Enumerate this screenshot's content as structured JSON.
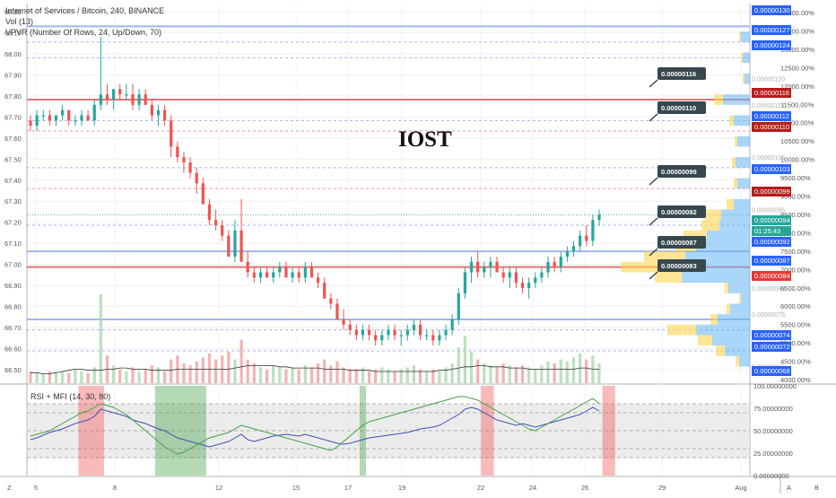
{
  "header": {
    "symbol_line": "Internet of Services / Bitcoin, 240, BINANCE",
    "volume_line": "Vol (13)",
    "vpvr_line": "VPVR (Number Of Rows, 24, Up/Down, 70)"
  },
  "overlay_title": "IOST",
  "rsi_label": "RSI + MFI (14, 30, 80)",
  "colors": {
    "up": "#26a69a",
    "down": "#ef5350",
    "blue_level": "#9fb6e6",
    "red_level": "#e57373",
    "price_tag_blue": "#2962ff",
    "price_tag_red": "#b71c1c",
    "price_tag_green": "#26a69a",
    "callout": "#37474f",
    "vpvr_up": "#64b5f6",
    "vpvr_down": "#ffd54f",
    "rsi_line": "#3f51b5",
    "mfi_line": "#43a047"
  },
  "chart_data": {
    "type": "candlestick",
    "left_axis_ticks": [
      "68.20",
      "68.10",
      "68.00",
      "67.90",
      "67.80",
      "67.70",
      "67.60",
      "67.50",
      "67.40",
      "67.30",
      "67.20",
      "67.10",
      "67.00",
      "66.90",
      "66.80",
      "66.70",
      "66.60",
      "66.50"
    ],
    "right_axis_ticks": [
      "14000.00%",
      "13500.00%",
      "13000.00%",
      "12500.00%",
      "12000.00%",
      "11500.00%",
      "11000.00%",
      "10500.00%",
      "10000.00%",
      "9500.00%",
      "9000.00%",
      "8500.00%",
      "8000.00%",
      "7500.00%",
      "7000.00%",
      "6500.00%",
      "6000.00%",
      "5500.00%",
      "5000.00%",
      "4500.00%",
      "4000.00%"
    ],
    "right_scale_ticks": [
      "0.00000120",
      "0.00000115",
      "0.00000105",
      "0.00000095",
      "0.00000090",
      "0.00000085",
      "0.00000080",
      "0.00000075",
      "0.00000070",
      "0.00000065"
    ],
    "rsi_axis_ticks": [
      "100.00000000",
      "75.00000000",
      "50.00000000",
      "25.00000000",
      "0.00000000"
    ],
    "x_ticks": [
      "5",
      "8",
      "12",
      "15",
      "17",
      "19",
      "22",
      "24",
      "26",
      "29",
      "Aug"
    ],
    "price_tags": [
      {
        "label": "0.00000130",
        "kind": "blue"
      },
      {
        "label": "0.00000127",
        "kind": "blue"
      },
      {
        "label": "0.00000124",
        "kind": "blue"
      },
      {
        "label": "0.00000116",
        "kind": "red"
      },
      {
        "label": "0.00000112",
        "kind": "blue"
      },
      {
        "label": "0.00000110",
        "kind": "red"
      },
      {
        "label": "0.00000103",
        "kind": "blue"
      },
      {
        "label": "0.00000099",
        "kind": "red"
      },
      {
        "label": "0.00000094",
        "kind": "green"
      },
      {
        "label": "01:25:43",
        "kind": "green"
      },
      {
        "label": "0.00000092",
        "kind": "blue"
      },
      {
        "label": "0.00000087",
        "kind": "blue"
      },
      {
        "label": "0.00000084",
        "kind": "brightred"
      },
      {
        "label": "0.00000074",
        "kind": "blue"
      },
      {
        "label": "0.00000072",
        "kind": "blue"
      },
      {
        "label": "0.00000068",
        "kind": "blue"
      }
    ],
    "callouts": [
      "0.00000116",
      "0.00000110",
      "0.00000099",
      "0.00000092",
      "0.00000087",
      "0.00000083"
    ],
    "candles_btc_e8": [
      [
        112,
        113,
        110,
        111
      ],
      [
        111,
        114,
        110,
        113
      ],
      [
        113,
        114,
        112,
        113
      ],
      [
        113,
        114,
        111,
        112
      ],
      [
        112,
        113,
        111,
        113
      ],
      [
        113,
        115,
        112,
        114
      ],
      [
        114,
        114,
        111,
        112
      ],
      [
        112,
        113,
        111,
        112
      ],
      [
        112,
        114,
        111,
        113
      ],
      [
        113,
        114,
        112,
        112
      ],
      [
        112,
        116,
        111,
        115
      ],
      [
        115,
        128,
        114,
        117
      ],
      [
        117,
        119,
        115,
        116
      ],
      [
        116,
        118,
        114,
        118
      ],
      [
        118,
        119,
        116,
        117
      ],
      [
        117,
        119,
        116,
        117
      ],
      [
        117,
        119,
        114,
        115
      ],
      [
        115,
        118,
        114,
        117
      ],
      [
        117,
        118,
        115,
        115
      ],
      [
        115,
        116,
        112,
        113
      ],
      [
        113,
        115,
        111,
        114
      ],
      [
        114,
        115,
        111,
        112
      ],
      [
        112,
        113,
        105,
        107
      ],
      [
        107,
        108,
        104,
        105
      ],
      [
        105,
        106,
        102,
        104
      ],
      [
        104,
        105,
        101,
        102
      ],
      [
        102,
        103,
        98,
        100
      ],
      [
        100,
        101,
        96,
        96
      ],
      [
        96,
        97,
        92,
        93
      ],
      [
        93,
        95,
        91,
        92
      ],
      [
        92,
        93,
        89,
        90
      ],
      [
        90,
        91,
        86,
        86
      ],
      [
        86,
        93,
        85,
        91
      ],
      [
        91,
        97,
        85,
        85
      ],
      [
        85,
        87,
        82,
        83
      ],
      [
        83,
        84,
        81,
        82
      ],
      [
        82,
        84,
        81,
        83
      ],
      [
        83,
        84,
        82,
        82
      ],
      [
        82,
        84,
        81,
        83
      ],
      [
        83,
        85,
        82,
        84
      ],
      [
        84,
        85,
        82,
        82
      ],
      [
        82,
        84,
        81,
        83
      ],
      [
        83,
        84,
        81,
        82
      ],
      [
        82,
        85,
        81,
        84
      ],
      [
        84,
        85,
        82,
        82
      ],
      [
        82,
        83,
        80,
        81
      ],
      [
        81,
        82,
        78,
        78
      ],
      [
        78,
        79,
        76,
        77
      ],
      [
        77,
        78,
        74,
        74
      ],
      [
        74,
        76,
        72,
        73
      ],
      [
        73,
        74,
        71,
        72
      ],
      [
        72,
        73,
        70,
        71
      ],
      [
        71,
        73,
        70,
        72
      ],
      [
        72,
        73,
        70,
        71
      ],
      [
        71,
        72,
        69,
        70
      ],
      [
        70,
        72,
        69,
        71
      ],
      [
        71,
        73,
        70,
        72
      ],
      [
        72,
        73,
        70,
        71
      ],
      [
        71,
        72,
        69,
        71
      ],
      [
        71,
        73,
        70,
        72
      ],
      [
        72,
        74,
        71,
        73
      ],
      [
        73,
        74,
        70,
        71
      ],
      [
        71,
        72,
        70,
        71
      ],
      [
        71,
        72,
        69,
        70
      ],
      [
        70,
        72,
        69,
        71
      ],
      [
        71,
        73,
        70,
        72
      ],
      [
        72,
        75,
        71,
        74
      ],
      [
        74,
        80,
        73,
        79
      ],
      [
        79,
        84,
        78,
        83
      ],
      [
        83,
        86,
        81,
        85
      ],
      [
        85,
        87,
        82,
        83
      ],
      [
        83,
        85,
        82,
        84
      ],
      [
        84,
        86,
        82,
        85
      ],
      [
        85,
        86,
        83,
        83
      ],
      [
        83,
        84,
        81,
        82
      ],
      [
        82,
        84,
        80,
        83
      ],
      [
        83,
        84,
        80,
        81
      ],
      [
        81,
        82,
        79,
        80
      ],
      [
        80,
        82,
        78,
        81
      ],
      [
        81,
        83,
        80,
        82
      ],
      [
        82,
        84,
        81,
        83
      ],
      [
        83,
        86,
        82,
        85
      ],
      [
        85,
        86,
        83,
        84
      ],
      [
        84,
        87,
        83,
        86
      ],
      [
        86,
        88,
        85,
        87
      ],
      [
        87,
        89,
        86,
        88
      ],
      [
        88,
        91,
        87,
        90
      ],
      [
        90,
        92,
        88,
        89
      ],
      [
        89,
        94,
        88,
        93
      ],
      [
        93,
        95,
        92,
        94
      ]
    ],
    "volume_rel": [
      6,
      5,
      5,
      6,
      5,
      6,
      5,
      7,
      6,
      5,
      8,
      45,
      14,
      9,
      7,
      6,
      8,
      6,
      7,
      9,
      8,
      6,
      12,
      14,
      10,
      9,
      11,
      13,
      15,
      12,
      14,
      16,
      12,
      22,
      12,
      10,
      8,
      7,
      9,
      8,
      7,
      8,
      7,
      9,
      8,
      10,
      12,
      9,
      11,
      8,
      7,
      7,
      8,
      6,
      7,
      8,
      7,
      6,
      7,
      8,
      9,
      7,
      6,
      7,
      6,
      8,
      10,
      18,
      24,
      16,
      12,
      10,
      9,
      8,
      10,
      9,
      8,
      9,
      8,
      7,
      9,
      11,
      10,
      12,
      11,
      13,
      15,
      12,
      14,
      10
    ],
    "vol_ma": [
      9,
      9,
      8,
      8,
      9,
      10,
      11,
      12,
      12,
      11,
      11,
      11,
      12,
      12,
      13,
      13,
      12,
      12,
      12,
      11,
      11,
      11,
      11,
      12,
      12,
      12,
      12,
      12,
      12,
      12,
      12,
      12,
      13,
      14,
      15,
      15,
      15,
      15,
      15,
      14,
      14,
      13,
      13,
      13,
      13,
      13,
      12,
      12,
      12,
      12,
      11,
      11,
      11,
      11,
      10,
      10,
      10,
      10,
      10,
      10,
      10,
      10,
      10,
      10,
      11,
      11,
      12,
      13,
      14,
      14,
      15,
      15,
      14,
      14,
      14,
      13,
      13,
      13,
      12,
      12,
      12,
      12,
      12,
      12,
      12,
      12,
      13,
      13,
      12,
      12
    ],
    "rsi": [
      40,
      42,
      45,
      48,
      50,
      52,
      55,
      58,
      60,
      62,
      66,
      74,
      72,
      70,
      68,
      66,
      62,
      60,
      58,
      55,
      52,
      50,
      46,
      42,
      40,
      38,
      36,
      34,
      32,
      34,
      36,
      38,
      42,
      46,
      40,
      38,
      40,
      42,
      44,
      45,
      46,
      45,
      44,
      46,
      44,
      42,
      40,
      38,
      36,
      35,
      36,
      38,
      40,
      42,
      43,
      44,
      45,
      46,
      47,
      48,
      50,
      52,
      53,
      54,
      56,
      60,
      64,
      68,
      74,
      76,
      74,
      70,
      66,
      62,
      60,
      58,
      56,
      58,
      56,
      54,
      56,
      58,
      60,
      62,
      64,
      66,
      68,
      72,
      76,
      72
    ],
    "mfi": [
      44,
      46,
      48,
      50,
      54,
      58,
      62,
      66,
      70,
      72,
      76,
      80,
      78,
      76,
      72,
      68,
      62,
      56,
      50,
      44,
      38,
      32,
      28,
      24,
      26,
      30,
      34,
      38,
      42,
      44,
      46,
      48,
      52,
      56,
      54,
      52,
      50,
      48,
      46,
      44,
      42,
      40,
      38,
      36,
      34,
      32,
      30,
      28,
      32,
      38,
      44,
      50,
      56,
      60,
      62,
      64,
      66,
      68,
      70,
      72,
      74,
      76,
      78,
      80,
      82,
      84,
      86,
      88,
      88,
      86,
      84,
      80,
      76,
      72,
      68,
      64,
      60,
      56,
      52,
      50,
      54,
      58,
      62,
      66,
      70,
      74,
      78,
      82,
      86,
      80
    ],
    "rsi_shaded_bands": [
      "8-11",
      "20",
      "21",
      "22-27",
      "52",
      "71-72",
      "90-91"
    ],
    "rsi_levels": [
      80,
      70,
      50,
      30,
      20
    ],
    "horizontal_levels_btc_e8": {
      "blue": [
        130,
        127,
        124,
        112,
        103,
        92,
        87,
        74,
        72,
        68
      ],
      "red": [
        116,
        110,
        99,
        84
      ]
    },
    "vpvr_rows_btc_e8": [
      {
        "price": 128,
        "up": 10,
        "down": 2
      },
      {
        "price": 124,
        "up": 8,
        "down": 2
      },
      {
        "price": 120,
        "up": 6,
        "down": 2
      },
      {
        "price": 116,
        "up": 30,
        "down": 10
      },
      {
        "price": 112,
        "up": 18,
        "down": 5
      },
      {
        "price": 108,
        "up": 14,
        "down": 3
      },
      {
        "price": 104,
        "up": 16,
        "down": 4
      },
      {
        "price": 100,
        "up": 14,
        "down": 4
      },
      {
        "price": 96,
        "up": 18,
        "down": 8
      },
      {
        "price": 94,
        "up": 32,
        "down": 18
      },
      {
        "price": 92,
        "up": 34,
        "down": 20
      },
      {
        "price": 90,
        "up": 48,
        "down": 26
      },
      {
        "price": 88,
        "up": 60,
        "down": 22
      },
      {
        "price": 86,
        "up": 72,
        "down": 46
      },
      {
        "price": 84,
        "up": 80,
        "down": 64
      },
      {
        "price": 82,
        "up": 76,
        "down": 30
      },
      {
        "price": 80,
        "up": 24,
        "down": 4
      },
      {
        "price": 78,
        "up": 10,
        "down": 2
      },
      {
        "price": 76,
        "up": 22,
        "down": 4
      },
      {
        "price": 74,
        "up": 36,
        "down": 8
      },
      {
        "price": 72,
        "up": 60,
        "down": 32
      },
      {
        "price": 70,
        "up": 42,
        "down": 16
      },
      {
        "price": 68,
        "up": 28,
        "down": 10
      },
      {
        "price": 66,
        "up": 12,
        "down": 4
      }
    ]
  }
}
